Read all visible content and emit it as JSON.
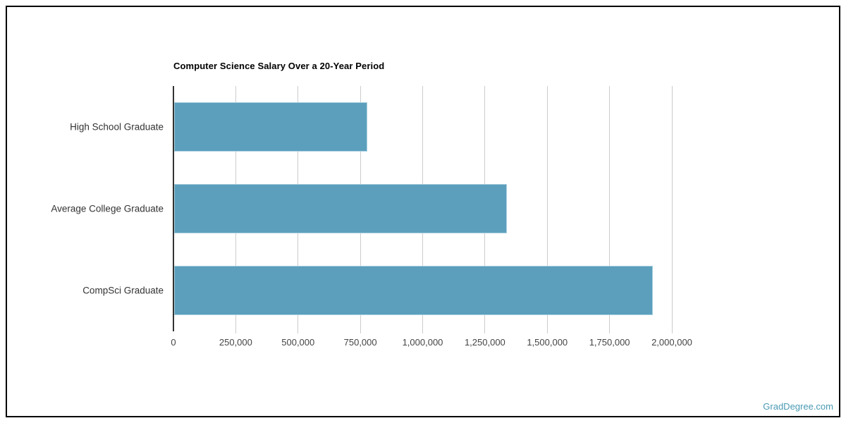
{
  "chart_data": {
    "type": "bar",
    "orientation": "horizontal",
    "title": "Computer Science Salary Over a 20-Year Period",
    "categories": [
      "High School Graduate",
      "Average College Graduate",
      "CompSci Graduate"
    ],
    "values": [
      775000,
      1335000,
      1920000
    ],
    "xlabel": "",
    "ylabel": "",
    "xlim": [
      0,
      2000000
    ],
    "x_ticks": [
      0,
      250000,
      500000,
      750000,
      1000000,
      1250000,
      1500000,
      1750000,
      2000000
    ],
    "x_tick_labels": [
      "0",
      "250,000",
      "500,000",
      "750,000",
      "1,000,000",
      "1,250,000",
      "1,500,000",
      "1,750,000",
      "2,000,000"
    ],
    "grid": true,
    "legend": "none",
    "colors": {
      "bar_fill": "#5b9fbd",
      "bar_border": "#a9cfde",
      "gridline": "#cccccc",
      "axis_line": "#333333",
      "tick_label": "#444444",
      "category_label": "#333333",
      "title": "#000000"
    }
  },
  "watermark": {
    "text": "GradDegree.com",
    "color": "#4a9ab5"
  },
  "frame": {
    "border_color": "#000000",
    "background": "#ffffff"
  }
}
